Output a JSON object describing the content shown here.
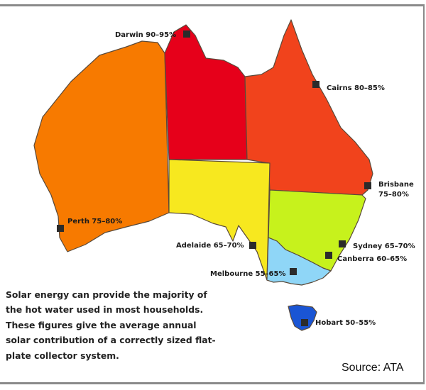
{
  "map": {
    "regions": [
      {
        "name": "Western Australia",
        "color": "#f77a00"
      },
      {
        "name": "Northern Territory",
        "color": "#e6001a"
      },
      {
        "name": "Queensland",
        "color": "#f1431c"
      },
      {
        "name": "South Australia",
        "color": "#f7e81f"
      },
      {
        "name": "New South Wales",
        "color": "#c7f21c"
      },
      {
        "name": "Victoria",
        "color": "#8fd6f7"
      },
      {
        "name": "Tasmania",
        "color": "#1a55d4"
      }
    ],
    "cities": [
      {
        "label": "Darwin 90–95%"
      },
      {
        "label": "Cairns 80–85%"
      },
      {
        "label": "Brisbane",
        "label2": "75–80%"
      },
      {
        "label": "Perth 75–80%"
      },
      {
        "label": "Adelaide 65–70%"
      },
      {
        "label": "Sydney 65–70%"
      },
      {
        "label": "Canberra 60–65%"
      },
      {
        "label": "Melbourne 55–65%"
      },
      {
        "label": "Hobart 50–55%"
      }
    ],
    "marker_color": "#2b2b2b"
  },
  "caption": "Solar energy can provide the majority of the hot water used in most households. These figures give the average annual solar contribution of a correctly sized flat-plate collector system.",
  "source": "Source: ATA"
}
